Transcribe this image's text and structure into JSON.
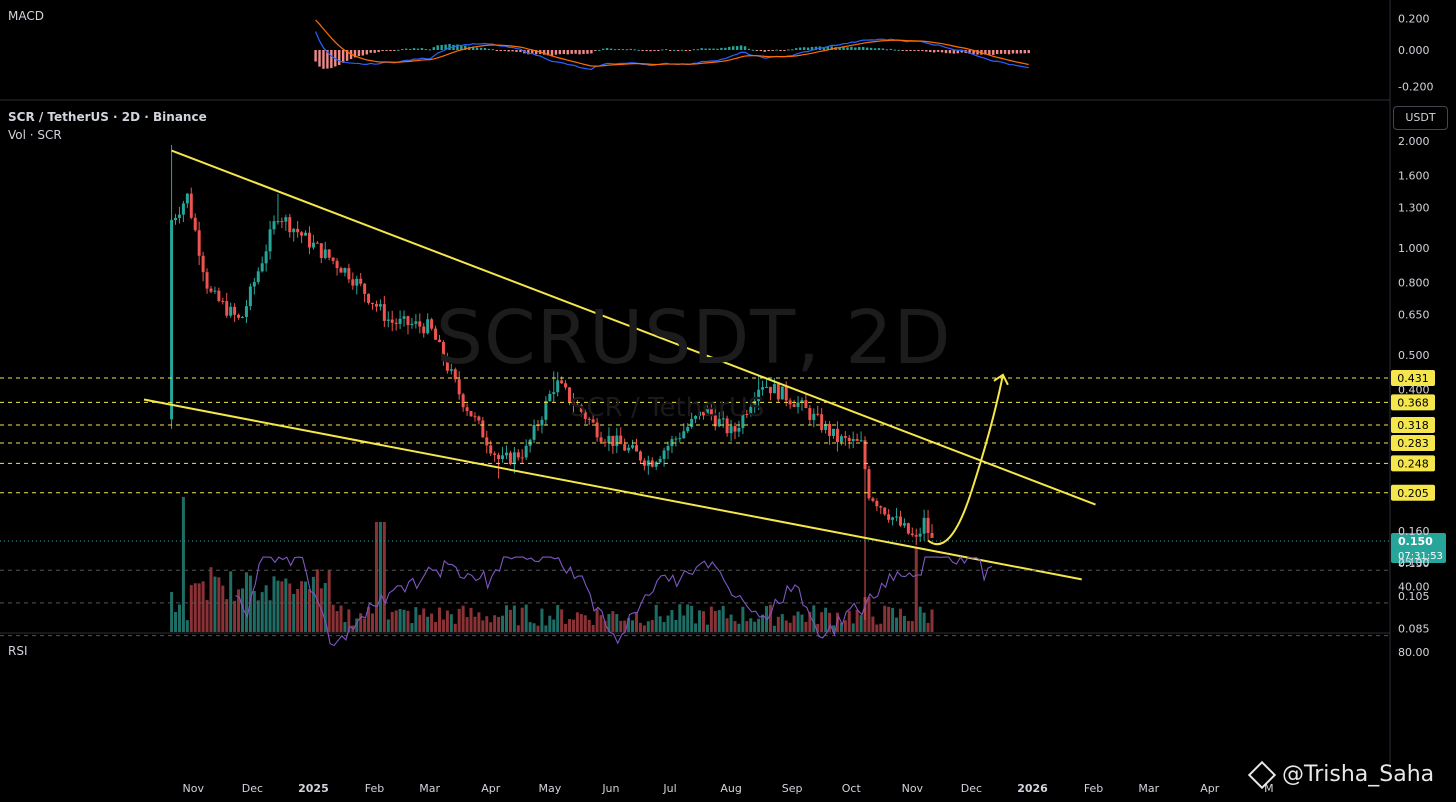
{
  "header": {
    "symbol": "SCR / TetherUS · 2D · Binance",
    "volume_label": "Vol · SCR",
    "macd_label": "MACD",
    "rsi_label": "RSI",
    "unit_button": "USDT"
  },
  "watermark": {
    "ticker": "SCRUSDT, 2D",
    "pair": "SCR / TetherUS"
  },
  "author": "@Trisha_Saha",
  "colors": {
    "up": "#26a69a",
    "down": "#ef5350",
    "trendline": "#f5e64b",
    "level": "#f5e64b",
    "macd": "#2962ff",
    "signal": "#ff6d00",
    "rsi": "#7e57c2"
  },
  "icons": {
    "author_logo": "diamond-logo-icon"
  },
  "chart_data": [
    {
      "id": "price",
      "type": "candlestick",
      "y_scale": "log",
      "y_ticks": [
        "2.000",
        "1.600",
        "1.300",
        "1.000",
        "0.800",
        "0.650",
        "0.500",
        "0.400",
        "0.160",
        "0.130",
        "0.105",
        "0.085"
      ],
      "y_tick_values": [
        2.0,
        1.6,
        1.3,
        1.0,
        0.8,
        0.65,
        0.5,
        0.4,
        0.16,
        0.13,
        0.105,
        0.085
      ],
      "x_labels": [
        "Nov",
        "Dec",
        "2025",
        "Feb",
        "Mar",
        "Apr",
        "May",
        "Jun",
        "Jul",
        "Aug",
        "Sep",
        "Oct",
        "Nov",
        "Dec",
        "2026",
        "Feb",
        "Mar",
        "Apr",
        "M"
      ],
      "levels": [
        {
          "label": "0.431",
          "value": 0.431
        },
        {
          "label": "0.368",
          "value": 0.368
        },
        {
          "label": "0.318",
          "value": 0.318
        },
        {
          "label": "0.283",
          "value": 0.283
        },
        {
          "label": "0.248",
          "value": 0.248
        },
        {
          "label": "0.205",
          "value": 0.205
        }
      ],
      "current_price": {
        "label": "0.150",
        "value": 0.15,
        "countdown": "07:31:53"
      },
      "trendlines": [
        {
          "name": "upper",
          "from": [
            "2024-10-22",
            1.88
          ],
          "to": [
            "2026-02-03",
            0.19
          ]
        },
        {
          "name": "lower",
          "from": [
            "2024-10-08",
            0.375
          ],
          "to": [
            "2026-01-27",
            0.117
          ]
        }
      ],
      "projection": {
        "from": [
          "2025-11-16",
          0.143
        ],
        "to": [
          "2025-12-18",
          0.44
        ]
      },
      "key_points": [
        {
          "date": "2024-10-22",
          "open": 0.33,
          "high": 1.95,
          "low": 0.31,
          "close": 1.2
        },
        {
          "date": "2024-12-15",
          "high": 1.42,
          "close": 1.25
        },
        {
          "date": "2025-04-07",
          "low": 0.225
        },
        {
          "date": "2025-05-05",
          "high": 0.45
        },
        {
          "date": "2025-08-17",
          "high": 0.437
        },
        {
          "date": "2025-10-10",
          "low": 0.09
        },
        {
          "date": "2025-11-12",
          "close": 0.15
        }
      ]
    },
    {
      "id": "macd",
      "type": "line",
      "y_ticks": [
        "0.200",
        "0.000",
        "-0.200"
      ],
      "y_tick_values": [
        0.2,
        0.0,
        -0.2
      ],
      "series": [
        {
          "name": "",
          "key": "macd"
        },
        {
          "name": "",
          "key": "signal"
        },
        {
          "name": "",
          "key": "histogram"
        }
      ]
    },
    {
      "id": "rsi",
      "type": "line",
      "y_ticks": [
        "80.00",
        "40.00",
        "25.00"
      ],
      "y_tick_values": [
        80,
        40,
        25
      ],
      "bands": [
        70,
        50,
        30
      ]
    }
  ]
}
